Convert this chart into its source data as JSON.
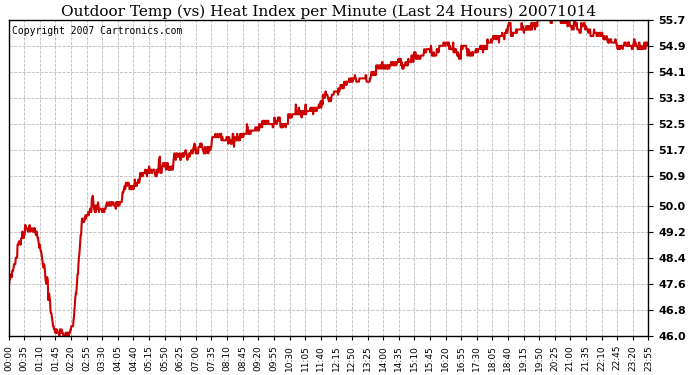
{
  "title": "Outdoor Temp (vs) Heat Index per Minute (Last 24 Hours) 20071014",
  "copyright_text": "Copyright 2007 Cartronics.com",
  "line_color": "#cc0000",
  "background_color": "#ffffff",
  "plot_bg_color": "#ffffff",
  "grid_color": "#aaaaaa",
  "ylim": [
    46.0,
    55.7
  ],
  "yticks": [
    46.0,
    46.8,
    47.6,
    48.4,
    49.2,
    50.0,
    50.9,
    51.7,
    52.5,
    53.3,
    54.1,
    54.9,
    55.7
  ],
  "title_fontsize": 11,
  "copyright_fontsize": 7,
  "tick_fontsize": 6.5,
  "ytick_fontsize": 8,
  "line_width": 1.5,
  "x_labels": [
    "00:00",
    "00:35",
    "01:10",
    "01:45",
    "02:20",
    "02:55",
    "03:30",
    "04:05",
    "04:40",
    "05:15",
    "05:50",
    "06:25",
    "07:00",
    "07:35",
    "08:10",
    "08:45",
    "09:20",
    "09:55",
    "10:30",
    "11:05",
    "11:40",
    "12:15",
    "12:50",
    "13:25",
    "14:00",
    "14:35",
    "15:10",
    "15:45",
    "16:20",
    "16:55",
    "17:30",
    "18:05",
    "18:40",
    "19:15",
    "19:50",
    "20:25",
    "21:00",
    "21:35",
    "22:10",
    "22:45",
    "23:20",
    "23:55"
  ],
  "key_points": [
    [
      0,
      47.6
    ],
    [
      35,
      49.2
    ],
    [
      65,
      49.1
    ],
    [
      105,
      46.1
    ],
    [
      130,
      46.0
    ],
    [
      145,
      46.3
    ],
    [
      165,
      49.5
    ],
    [
      185,
      49.9
    ],
    [
      210,
      50.0
    ],
    [
      240,
      50.2
    ],
    [
      270,
      50.5
    ],
    [
      300,
      50.9
    ],
    [
      330,
      51.1
    ],
    [
      360,
      51.3
    ],
    [
      390,
      51.5
    ],
    [
      420,
      51.7
    ],
    [
      450,
      51.9
    ],
    [
      480,
      52.0
    ],
    [
      510,
      52.1
    ],
    [
      540,
      52.3
    ],
    [
      570,
      52.5
    ],
    [
      600,
      52.5
    ],
    [
      615,
      52.6
    ],
    [
      630,
      52.7
    ],
    [
      660,
      52.9
    ],
    [
      690,
      53.0
    ],
    [
      720,
      53.3
    ],
    [
      750,
      53.5
    ],
    [
      780,
      53.8
    ],
    [
      810,
      54.0
    ],
    [
      840,
      54.2
    ],
    [
      870,
      54.3
    ],
    [
      900,
      54.5
    ],
    [
      930,
      54.6
    ],
    [
      960,
      54.7
    ],
    [
      990,
      54.8
    ],
    [
      1020,
      54.7
    ],
    [
      1050,
      54.9
    ],
    [
      1080,
      55.0
    ],
    [
      1110,
      55.2
    ],
    [
      1140,
      55.4
    ],
    [
      1170,
      55.6
    ],
    [
      1200,
      55.7
    ],
    [
      1230,
      55.7
    ],
    [
      1260,
      55.6
    ],
    [
      1290,
      55.4
    ],
    [
      1320,
      55.2
    ],
    [
      1350,
      55.0
    ],
    [
      1380,
      54.9
    ],
    [
      1410,
      54.9
    ],
    [
      1439,
      54.8
    ]
  ]
}
